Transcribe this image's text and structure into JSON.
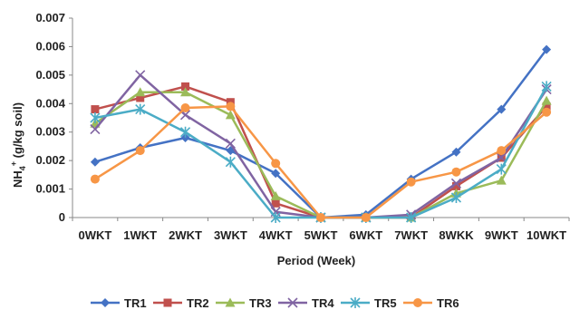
{
  "chart_data": {
    "type": "line",
    "title": "",
    "xlabel": "Period (Week)",
    "ylabel_main": "NH",
    "ylabel_sub": "4",
    "ylabel_sup": "+",
    "ylabel_rest": " (g/kg soil)",
    "categories": [
      "0WKT",
      "1WKT",
      "2WKT",
      "3WKT",
      "4WKT",
      "5WKT",
      "6WKT",
      "7WKT",
      "8WKK",
      "9WKT",
      "10WKT"
    ],
    "ylim": [
      0,
      0.007
    ],
    "yticks": [
      "0",
      "0.001",
      "0.002",
      "0.003",
      "0.004",
      "0.005",
      "0.006",
      "0.007"
    ],
    "grid": false,
    "legend_position": "bottom",
    "series": [
      {
        "name": "TR1",
        "color": "#4472C4",
        "marker": "diamond",
        "values": [
          0.00195,
          0.00245,
          0.0028,
          0.00235,
          0.00155,
          0.0,
          0.0001,
          0.00135,
          0.0023,
          0.0038,
          0.0059
        ]
      },
      {
        "name": "TR2",
        "color": "#C0504D",
        "marker": "square",
        "values": [
          0.0038,
          0.0042,
          0.0046,
          0.00405,
          0.0005,
          0.0,
          0.0,
          0.0,
          0.0011,
          0.0021,
          0.0039
        ]
      },
      {
        "name": "TR3",
        "color": "#9BBB59",
        "marker": "triangle",
        "values": [
          0.0033,
          0.0044,
          0.0044,
          0.0036,
          0.00075,
          0.0,
          0.0,
          0.0,
          0.00085,
          0.0013,
          0.0041
        ]
      },
      {
        "name": "TR4",
        "color": "#8064A2",
        "marker": "x",
        "values": [
          0.0031,
          0.005,
          0.0036,
          0.0026,
          0.0002,
          0.0,
          0.0,
          0.0001,
          0.0012,
          0.0021,
          0.0045
        ]
      },
      {
        "name": "TR5",
        "color": "#4BACC6",
        "marker": "star",
        "values": [
          0.0035,
          0.0038,
          0.003,
          0.00195,
          0.0,
          0.0,
          0.0,
          0.0,
          0.0007,
          0.0017,
          0.0046
        ]
      },
      {
        "name": "TR6",
        "color": "#F79646",
        "marker": "circle",
        "values": [
          0.00135,
          0.00235,
          0.00385,
          0.0039,
          0.0019,
          0.0,
          0.0,
          0.00125,
          0.0016,
          0.00235,
          0.0037
        ]
      }
    ]
  }
}
